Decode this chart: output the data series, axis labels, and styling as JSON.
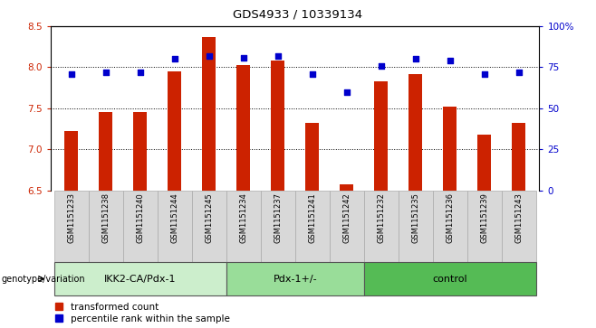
{
  "title": "GDS4933 / 10339134",
  "samples": [
    "GSM1151233",
    "GSM1151238",
    "GSM1151240",
    "GSM1151244",
    "GSM1151245",
    "GSM1151234",
    "GSM1151237",
    "GSM1151241",
    "GSM1151242",
    "GSM1151232",
    "GSM1151235",
    "GSM1151236",
    "GSM1151239",
    "GSM1151243"
  ],
  "bar_values": [
    7.22,
    7.45,
    7.45,
    7.95,
    8.37,
    8.03,
    8.08,
    7.32,
    6.57,
    7.83,
    7.92,
    7.52,
    7.18,
    7.32
  ],
  "dot_values": [
    71,
    72,
    72,
    80,
    82,
    81,
    82,
    71,
    60,
    76,
    80,
    79,
    71,
    72
  ],
  "bar_bottom": 6.5,
  "ylim_left": [
    6.5,
    8.5
  ],
  "ylim_right": [
    0,
    100
  ],
  "yticks_left": [
    6.5,
    7.0,
    7.5,
    8.0,
    8.5
  ],
  "yticks_right": [
    0,
    25,
    50,
    75,
    100
  ],
  "ytick_labels_right": [
    "0",
    "25",
    "50",
    "75",
    "100%"
  ],
  "groups": [
    {
      "label": "IKK2-CA/Pdx-1",
      "start": 0,
      "end": 4
    },
    {
      "label": "Pdx-1+/-",
      "start": 5,
      "end": 8
    },
    {
      "label": "control",
      "start": 9,
      "end": 13
    }
  ],
  "group_colors": [
    "#cceecc",
    "#99dd99",
    "#55bb55"
  ],
  "bar_color": "#cc2200",
  "dot_color": "#0000cc",
  "left_tick_color": "#cc2200",
  "right_tick_color": "#0000cc",
  "legend_items": [
    "transformed count",
    "percentile rank within the sample"
  ],
  "genotype_label": "genotype/variation",
  "grid_yticks": [
    7.0,
    7.5,
    8.0
  ]
}
